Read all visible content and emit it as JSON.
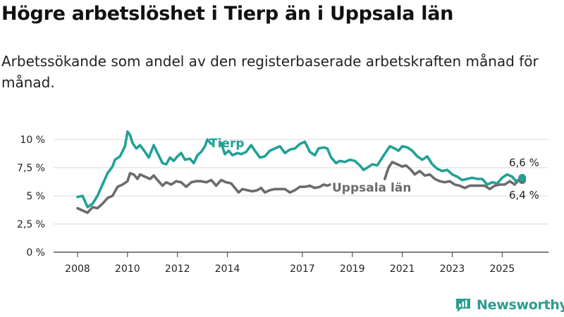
{
  "title": "Högre arbetslöshet i Tierp än i Uppsala län",
  "subtitle": "Arbetssökande som andel av den registerbaserade arbetskraften månad för månad.",
  "brand": {
    "name": "Newsworthy",
    "icon": "bar-chart-logo-icon"
  },
  "colors": {
    "tierp": "#21a195",
    "uppsala": "#6b6b6b",
    "grid": "#d9d9d9",
    "axis": "#333333"
  },
  "chart_data": {
    "type": "line",
    "xlim": [
      2008,
      2025.95
    ],
    "ylim": [
      0,
      10
    ],
    "y_ticks": [
      {
        "value": 0,
        "label": "0 %"
      },
      {
        "value": 2.5,
        "label": "2,5 %"
      },
      {
        "value": 5,
        "label": "5 %"
      },
      {
        "value": 7.5,
        "label": "7,5 %"
      },
      {
        "value": 10,
        "label": "10 %"
      }
    ],
    "x_ticks": [
      {
        "value": 2008,
        "label": "2008"
      },
      {
        "value": 2010,
        "label": "2010"
      },
      {
        "value": 2012,
        "label": "2012"
      },
      {
        "value": 2014,
        "label": "2014"
      },
      {
        "value": 2017,
        "label": "2017"
      },
      {
        "value": 2019,
        "label": "2019"
      },
      {
        "value": 2021,
        "label": "2021"
      },
      {
        "value": 2023,
        "label": "2023"
      },
      {
        "value": 2025,
        "label": "2025"
      }
    ],
    "grid": true,
    "series": [
      {
        "name": "Tierp",
        "end_label": "6,6 %",
        "segments": [
          [
            [
              2008.0,
              4.9
            ],
            [
              2008.2,
              5.0
            ],
            [
              2008.4,
              4.0
            ],
            [
              2008.6,
              4.3
            ],
            [
              2008.8,
              5.0
            ],
            [
              2009.0,
              6.0
            ],
            [
              2009.2,
              7.0
            ],
            [
              2009.4,
              7.6
            ],
            [
              2009.5,
              8.2
            ],
            [
              2009.7,
              8.5
            ],
            [
              2009.9,
              9.4
            ],
            [
              2010.0,
              10.7
            ],
            [
              2010.1,
              10.4
            ],
            [
              2010.2,
              9.7
            ],
            [
              2010.35,
              9.2
            ],
            [
              2010.5,
              9.5
            ],
            [
              2010.7,
              8.9
            ],
            [
              2010.85,
              8.4
            ],
            [
              2011.05,
              9.5
            ],
            [
              2011.2,
              8.8
            ],
            [
              2011.4,
              7.9
            ],
            [
              2011.55,
              7.8
            ],
            [
              2011.7,
              8.4
            ],
            [
              2011.85,
              8.1
            ],
            [
              2012.0,
              8.5
            ],
            [
              2012.15,
              8.8
            ],
            [
              2012.3,
              8.2
            ],
            [
              2012.5,
              8.3
            ],
            [
              2012.65,
              7.9
            ],
            [
              2012.8,
              8.6
            ],
            [
              2012.95,
              8.9
            ],
            [
              2013.1,
              9.4
            ],
            [
              2013.2,
              10.0
            ],
            [
              2013.35,
              9.6
            ]
          ],
          [
            [
              2013.75,
              9.7
            ],
            [
              2013.9,
              8.7
            ],
            [
              2014.05,
              9.0
            ],
            [
              2014.2,
              8.6
            ],
            [
              2014.4,
              8.8
            ],
            [
              2014.55,
              8.7
            ],
            [
              2014.75,
              8.9
            ],
            [
              2014.95,
              9.5
            ],
            [
              2015.1,
              9.0
            ],
            [
              2015.3,
              8.4
            ],
            [
              2015.5,
              8.5
            ],
            [
              2015.7,
              9.0
            ],
            [
              2015.9,
              9.2
            ],
            [
              2016.1,
              9.4
            ],
            [
              2016.3,
              8.8
            ],
            [
              2016.5,
              9.1
            ],
            [
              2016.7,
              9.2
            ],
            [
              2016.9,
              9.6
            ],
            [
              2017.1,
              9.8
            ],
            [
              2017.3,
              8.9
            ],
            [
              2017.5,
              8.6
            ],
            [
              2017.65,
              9.2
            ],
            [
              2017.85,
              9.3
            ],
            [
              2018.0,
              9.2
            ],
            [
              2018.15,
              8.4
            ],
            [
              2018.35,
              7.9
            ],
            [
              2018.5,
              8.1
            ],
            [
              2018.7,
              8.0
            ],
            [
              2018.9,
              8.2
            ],
            [
              2019.1,
              8.1
            ],
            [
              2019.3,
              7.7
            ],
            [
              2019.45,
              7.3
            ],
            [
              2019.6,
              7.5
            ],
            [
              2019.8,
              7.8
            ],
            [
              2020.0,
              7.7
            ],
            [
              2020.2,
              8.4
            ],
            [
              2020.35,
              8.9
            ],
            [
              2020.5,
              9.4
            ],
            [
              2020.7,
              9.2
            ],
            [
              2020.85,
              9.0
            ],
            [
              2021.0,
              9.4
            ],
            [
              2021.2,
              9.3
            ],
            [
              2021.4,
              9.0
            ],
            [
              2021.6,
              8.5
            ],
            [
              2021.8,
              8.2
            ],
            [
              2022.0,
              8.5
            ],
            [
              2022.2,
              7.8
            ],
            [
              2022.4,
              7.4
            ],
            [
              2022.6,
              7.2
            ],
            [
              2022.8,
              7.3
            ],
            [
              2023.0,
              6.9
            ],
            [
              2023.2,
              6.7
            ],
            [
              2023.4,
              6.4
            ],
            [
              2023.6,
              6.5
            ],
            [
              2023.8,
              6.6
            ],
            [
              2024.0,
              6.5
            ],
            [
              2024.2,
              6.5
            ],
            [
              2024.4,
              6.0
            ],
            [
              2024.6,
              6.2
            ],
            [
              2024.8,
              6.1
            ],
            [
              2025.0,
              6.6
            ],
            [
              2025.2,
              6.9
            ],
            [
              2025.4,
              6.7
            ],
            [
              2025.55,
              6.3
            ],
            [
              2025.8,
              6.6
            ]
          ]
        ]
      },
      {
        "name": "Uppsala län",
        "end_label": "6,4 %",
        "segments": [
          [
            [
              2008.0,
              3.9
            ],
            [
              2008.2,
              3.7
            ],
            [
              2008.4,
              3.5
            ],
            [
              2008.6,
              4.0
            ],
            [
              2008.8,
              3.9
            ],
            [
              2009.0,
              4.3
            ],
            [
              2009.2,
              4.8
            ],
            [
              2009.4,
              5.0
            ],
            [
              2009.6,
              5.8
            ],
            [
              2009.8,
              6.0
            ],
            [
              2010.0,
              6.3
            ],
            [
              2010.1,
              7.0
            ],
            [
              2010.25,
              6.9
            ],
            [
              2010.4,
              6.5
            ],
            [
              2010.5,
              6.9
            ],
            [
              2010.7,
              6.7
            ],
            [
              2010.9,
              6.5
            ],
            [
              2011.05,
              6.8
            ],
            [
              2011.2,
              6.4
            ],
            [
              2011.4,
              5.9
            ],
            [
              2011.55,
              6.2
            ],
            [
              2011.75,
              6.0
            ],
            [
              2011.95,
              6.3
            ],
            [
              2012.15,
              6.2
            ],
            [
              2012.35,
              5.8
            ],
            [
              2012.55,
              6.2
            ],
            [
              2012.75,
              6.3
            ],
            [
              2012.95,
              6.3
            ],
            [
              2013.15,
              6.2
            ],
            [
              2013.35,
              6.4
            ],
            [
              2013.55,
              5.9
            ],
            [
              2013.75,
              6.4
            ],
            [
              2013.95,
              6.2
            ],
            [
              2014.15,
              6.1
            ],
            [
              2014.3,
              5.7
            ],
            [
              2014.45,
              5.3
            ],
            [
              2014.6,
              5.6
            ],
            [
              2014.8,
              5.5
            ],
            [
              2015.0,
              5.4
            ],
            [
              2015.2,
              5.5
            ],
            [
              2015.35,
              5.7
            ],
            [
              2015.5,
              5.3
            ],
            [
              2015.7,
              5.5
            ],
            [
              2015.9,
              5.6
            ],
            [
              2016.1,
              5.6
            ],
            [
              2016.3,
              5.6
            ],
            [
              2016.5,
              5.3
            ],
            [
              2016.7,
              5.5
            ],
            [
              2016.9,
              5.8
            ],
            [
              2017.1,
              5.8
            ],
            [
              2017.3,
              5.9
            ],
            [
              2017.5,
              5.7
            ],
            [
              2017.7,
              5.8
            ],
            [
              2017.85,
              6.0
            ],
            [
              2018.0,
              5.9
            ],
            [
              2018.1,
              6.0
            ]
          ],
          [
            [
              2020.3,
              6.5
            ],
            [
              2020.45,
              7.5
            ],
            [
              2020.6,
              8.0
            ],
            [
              2020.8,
              7.8
            ],
            [
              2021.0,
              7.6
            ],
            [
              2021.15,
              7.7
            ],
            [
              2021.35,
              7.3
            ],
            [
              2021.5,
              6.9
            ],
            [
              2021.7,
              7.2
            ],
            [
              2021.9,
              6.8
            ],
            [
              2022.1,
              6.9
            ],
            [
              2022.3,
              6.5
            ],
            [
              2022.5,
              6.3
            ],
            [
              2022.7,
              6.2
            ],
            [
              2022.9,
              6.3
            ],
            [
              2023.1,
              6.0
            ],
            [
              2023.3,
              5.9
            ],
            [
              2023.5,
              5.7
            ],
            [
              2023.7,
              5.9
            ],
            [
              2023.9,
              5.9
            ],
            [
              2024.1,
              5.9
            ],
            [
              2024.3,
              5.9
            ],
            [
              2024.5,
              5.6
            ],
            [
              2024.7,
              5.9
            ],
            [
              2024.9,
              6.0
            ],
            [
              2025.1,
              6.0
            ],
            [
              2025.3,
              6.3
            ],
            [
              2025.5,
              6.0
            ],
            [
              2025.65,
              6.4
            ],
            [
              2025.8,
              6.4
            ]
          ]
        ]
      }
    ]
  }
}
